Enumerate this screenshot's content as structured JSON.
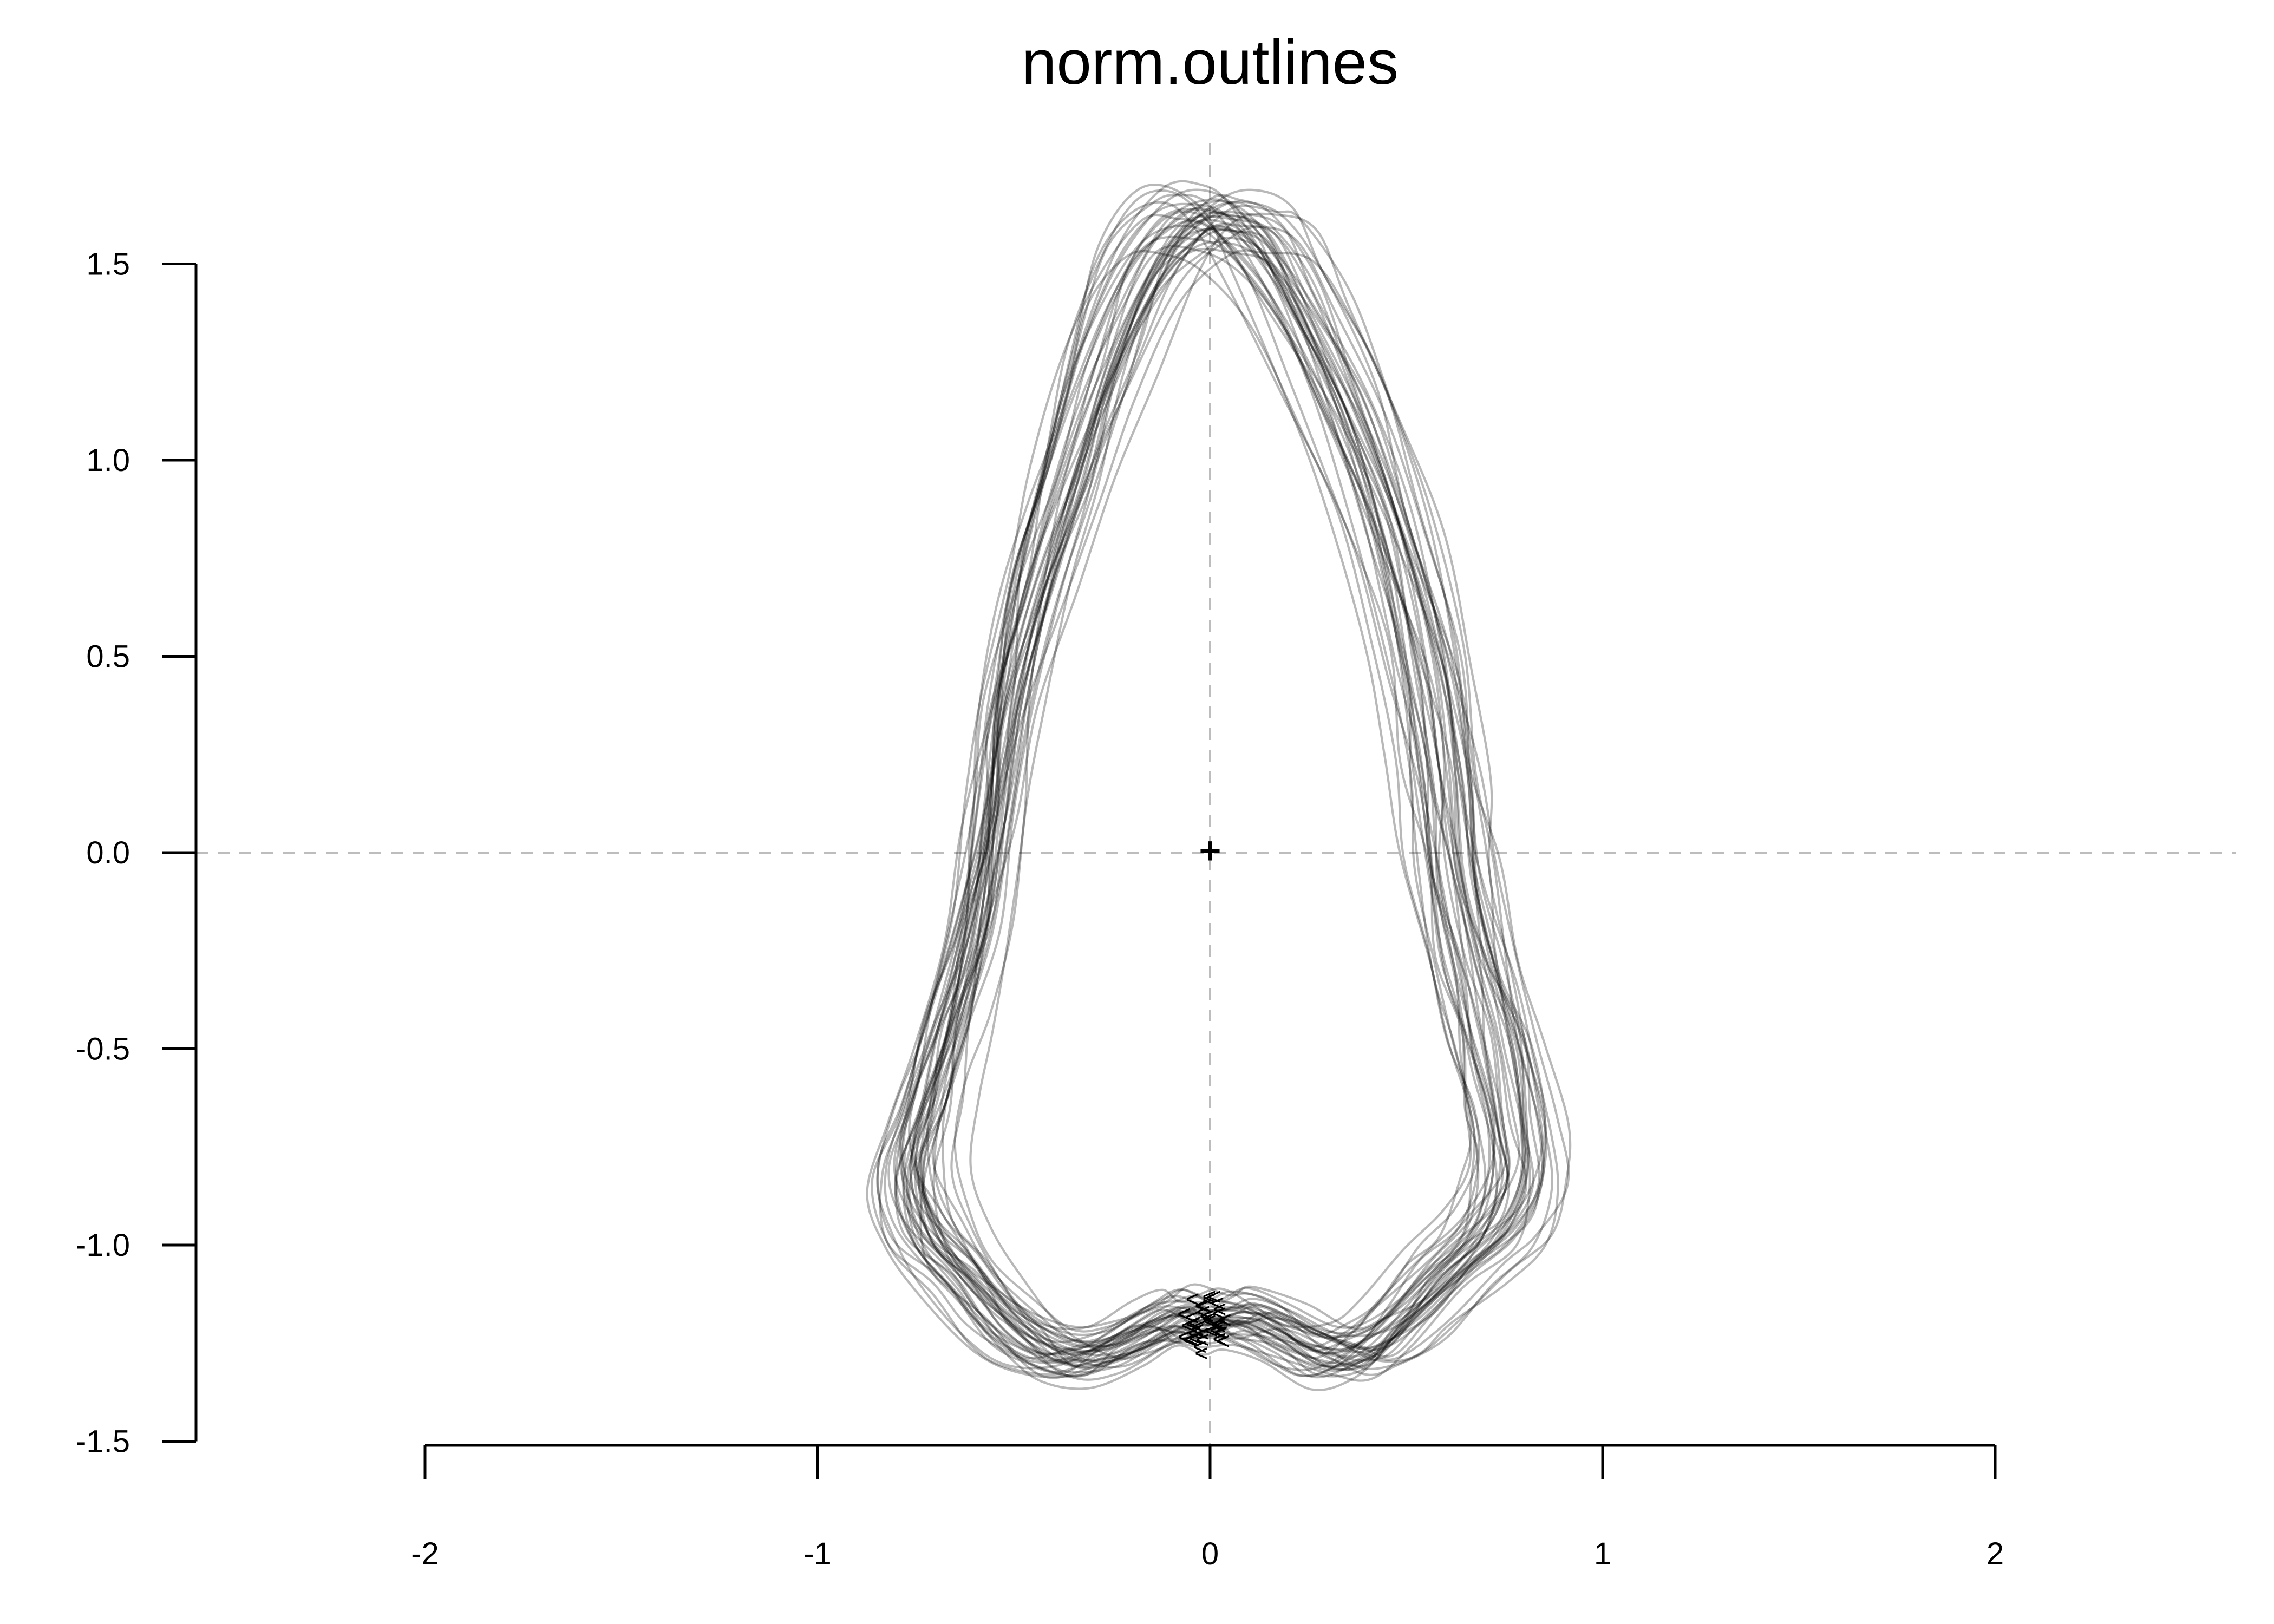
{
  "chart_data": {
    "type": "line",
    "title": "norm.outlines",
    "xlabel": "",
    "ylabel": "",
    "xlim": [
      -2,
      2
    ],
    "ylim": [
      -1.5,
      1.5
    ],
    "x_ticks": [
      "-2",
      "-1",
      "0",
      "1",
      "2"
    ],
    "y_ticks": [
      "1.5",
      "1.0",
      "0.5",
      "0.0",
      "-0.5",
      "-1.0",
      "-1.5"
    ],
    "grid": false,
    "reference_lines": [
      {
        "axis": "x",
        "value": 0,
        "style": "dashed"
      },
      {
        "axis": "y",
        "value": 0,
        "style": "dashed"
      }
    ],
    "centroid_marker": {
      "x": 0,
      "y": 0,
      "symbol": "+"
    },
    "outline_color": "#000000",
    "outline_opacity": 0.28,
    "reference_line_color": "#bdbdbd",
    "axis_color": "#000000",
    "start_point_marker": "<",
    "outline_count": 40,
    "mean_outline": [
      [
        0.0,
        -1.22
      ],
      [
        0.08,
        -1.2
      ],
      [
        0.18,
        -1.24
      ],
      [
        0.3,
        -1.3
      ],
      [
        0.4,
        -1.29
      ],
      [
        0.5,
        -1.21
      ],
      [
        0.62,
        -1.08
      ],
      [
        0.72,
        -0.98
      ],
      [
        0.78,
        -0.85
      ],
      [
        0.77,
        -0.7
      ],
      [
        0.73,
        -0.5
      ],
      [
        0.68,
        -0.3
      ],
      [
        0.63,
        -0.05
      ],
      [
        0.6,
        0.2
      ],
      [
        0.55,
        0.5
      ],
      [
        0.46,
        0.85
      ],
      [
        0.35,
        1.15
      ],
      [
        0.22,
        1.42
      ],
      [
        0.12,
        1.58
      ],
      [
        0.03,
        1.63
      ],
      [
        -0.07,
        1.61
      ],
      [
        -0.17,
        1.48
      ],
      [
        -0.27,
        1.24
      ],
      [
        -0.36,
        0.96
      ],
      [
        -0.44,
        0.68
      ],
      [
        -0.51,
        0.38
      ],
      [
        -0.55,
        0.1
      ],
      [
        -0.6,
        -0.2
      ],
      [
        -0.66,
        -0.45
      ],
      [
        -0.72,
        -0.65
      ],
      [
        -0.76,
        -0.82
      ],
      [
        -0.72,
        -0.98
      ],
      [
        -0.62,
        -1.1
      ],
      [
        -0.52,
        -1.22
      ],
      [
        -0.4,
        -1.3
      ],
      [
        -0.28,
        -1.3
      ],
      [
        -0.16,
        -1.24
      ],
      [
        -0.07,
        -1.2
      ]
    ]
  }
}
